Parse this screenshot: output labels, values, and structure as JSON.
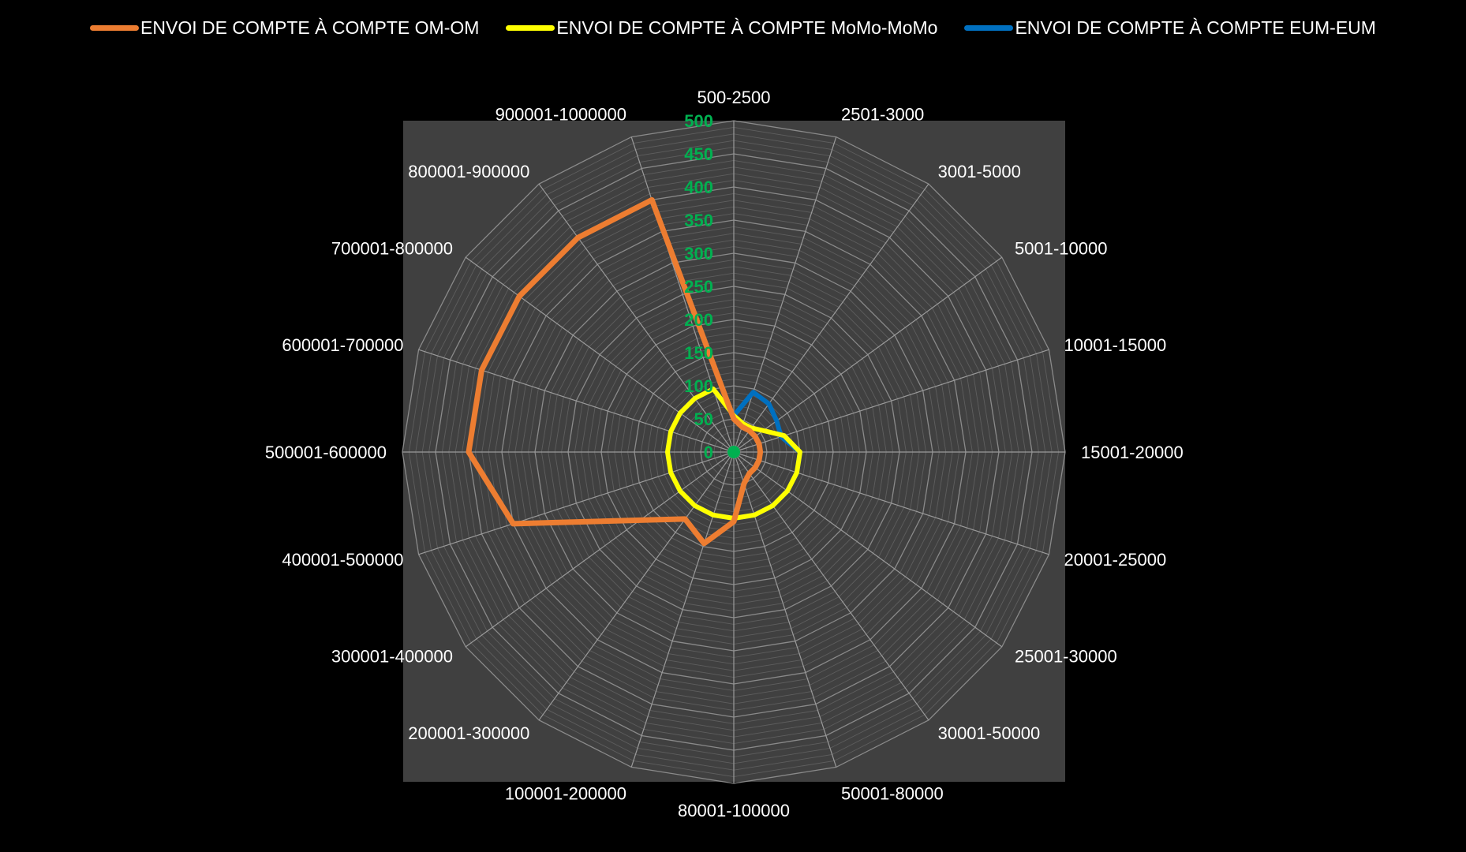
{
  "chart_data": {
    "type": "radar",
    "title": "",
    "categories": [
      "500-2500",
      "2501-3000",
      "3001-5000",
      "5001-10000",
      "10001-15000",
      "15001-20000",
      "20001-25000",
      "25001-30000",
      "30001-50000",
      "50001-80000",
      "80001-100000",
      "100001-200000",
      "200001-300000",
      "300001-400000",
      "400001-500000",
      "500001-600000",
      "600001-700000",
      "700001-800000",
      "800001-900000",
      "900001-1000000"
    ],
    "series": [
      {
        "name": "ENVOI DE COMPTE À COMPTE  OM-OM",
        "color": "#ED7D31",
        "values": [
          50,
          40,
          40,
          40,
          40,
          40,
          40,
          40,
          40,
          50,
          105,
          145,
          125,
          175,
          350,
          400,
          400,
          400,
          400,
          400
        ]
      },
      {
        "name": "ENVOI DE COMPTE À COMPTE  MoMo-MoMo",
        "color": "#FFFF00",
        "values": [
          55,
          45,
          45,
          55,
          80,
          100,
          100,
          100,
          100,
          100,
          100,
          100,
          100,
          100,
          100,
          100,
          100,
          100,
          100,
          100
        ]
      },
      {
        "name": "ENVOI DE COMPTE À COMPTE  EUM-EUM",
        "color": "#0070C0",
        "values": [
          55,
          95,
          90,
          80,
          75,
          100,
          100,
          100,
          100,
          100,
          100,
          100,
          100,
          100,
          100,
          100,
          100,
          100,
          100,
          100
        ]
      }
    ],
    "r_ticks": [
      "0",
      "50",
      "100",
      "150",
      "200",
      "250",
      "300",
      "350",
      "400",
      "450",
      "500"
    ],
    "r_max": 500,
    "minor_gridlines": true,
    "legend_position": "top",
    "tick_label_color": "#00B050",
    "plot_background": "#404040",
    "page_background": "#000000"
  }
}
